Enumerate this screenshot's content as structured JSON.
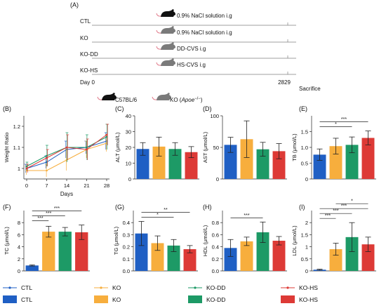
{
  "panel_labels": {
    "A": "(A)",
    "B": "(B)",
    "C": "(C)",
    "D": "(D)",
    "E": "(E)",
    "F": "(F)",
    "G": "(G)",
    "H": "(H)",
    "I": "(I)"
  },
  "timeline": {
    "groups": [
      {
        "label": "CTL",
        "treatment": "0.9% NaCl solution i.g",
        "mouse": "C57BL/6"
      },
      {
        "label": "KO",
        "treatment": "0.9% NaCl solution i.g",
        "mouse": "KO"
      },
      {
        "label": "KO-DD",
        "treatment": "DD-CVS i.g",
        "mouse": "KO"
      },
      {
        "label": "KO-HS",
        "treatment": "HS-CVS i.g",
        "mouse": "KO"
      }
    ],
    "day_label": "Day",
    "day_start": "0",
    "day_end_a": "28",
    "day_end_b": "29",
    "sacrifice": "Sacrifice",
    "key": [
      {
        "label": "C57BL/6"
      },
      {
        "label": "KO (",
        "italic": "Apoe",
        "sup": "−/−",
        "tail": ")"
      }
    ]
  },
  "colors": {
    "CTL": "#1f5fc4",
    "KO": "#f7ae3d",
    "KO-DD": "#1d9a66",
    "KO-HS": "#dd3a36",
    "timeline": "#7f7f7f",
    "mouse_dark": "#111111",
    "mouse_gray": "#7a7a7a",
    "tail": "#e07a8a"
  },
  "groups": [
    "CTL",
    "KO",
    "KO-DD",
    "KO-HS"
  ],
  "chart_data": [
    {
      "id": "B",
      "type": "line",
      "xlabel": "Days",
      "ylabel": "Weight Ratio",
      "x": [
        0,
        7,
        14,
        21,
        28
      ],
      "xticks": [
        "0",
        "7",
        "14",
        "21",
        "28"
      ],
      "ylim": [
        0.95,
        1.25
      ],
      "yticks": [
        {
          "v": 1.0,
          "t": "1"
        },
        {
          "v": 1.1,
          "t": "1.1"
        },
        {
          "v": 1.2,
          "t": "1.2"
        }
      ],
      "series": [
        {
          "name": "CTL",
          "values": [
            1.0,
            1.03,
            1.09,
            1.1,
            1.13
          ]
        },
        {
          "name": "KO",
          "values": [
            0.99,
            0.99,
            1.04,
            1.09,
            1.12
          ]
        },
        {
          "name": "KO-DD",
          "values": [
            1.01,
            1.06,
            1.1,
            1.1,
            1.15
          ]
        },
        {
          "name": "KO-HS",
          "values": [
            1.0,
            1.05,
            1.1,
            1.09,
            1.16
          ]
        }
      ],
      "err": [
        [
          0.02,
          0.03,
          0.04,
          0.03,
          0.04
        ],
        [
          0.02,
          0.03,
          0.05,
          0.04,
          0.04
        ],
        [
          0.02,
          0.05,
          0.07,
          0.06,
          0.06
        ],
        [
          0.02,
          0.04,
          0.06,
          0.05,
          0.05
        ]
      ]
    },
    {
      "id": "C",
      "type": "bar",
      "ylabel": "ALT (μmol/L)",
      "ylim": [
        0,
        40
      ],
      "yticks": [
        {
          "v": 0,
          "t": "0"
        },
        {
          "v": 10,
          "t": "10"
        },
        {
          "v": 20,
          "t": "20"
        },
        {
          "v": 30,
          "t": "30"
        },
        {
          "v": 40,
          "t": "40"
        }
      ],
      "values": [
        19,
        20.5,
        19,
        17
      ],
      "err": [
        4,
        6,
        4,
        3.5
      ],
      "sig": []
    },
    {
      "id": "D",
      "type": "bar",
      "ylabel": "AST (μmol/L)",
      "ylim": [
        0,
        100
      ],
      "yticks": [
        {
          "v": 0,
          "t": "0"
        },
        {
          "v": 50,
          "t": "50"
        },
        {
          "v": 100,
          "t": "100"
        }
      ],
      "values": [
        54,
        63,
        47,
        44
      ],
      "err": [
        12,
        29,
        11,
        12
      ],
      "sig": []
    },
    {
      "id": "E",
      "type": "bar",
      "ylabel": "TB (μmol/L)",
      "ylim": [
        0,
        2.0
      ],
      "yticks": [
        {
          "v": 0,
          "t": "0"
        },
        {
          "v": 0.5,
          "t": "0.5"
        },
        {
          "v": 1.0,
          "t": "1.0"
        },
        {
          "v": 1.5,
          "t": "1.5"
        }
      ],
      "values": [
        0.77,
        1.04,
        1.08,
        1.3
      ],
      "err": [
        0.18,
        0.25,
        0.25,
        0.22
      ],
      "sig": [
        {
          "from": 0,
          "to": 2,
          "label": "*"
        },
        {
          "from": 0,
          "to": 3,
          "label": "***"
        }
      ]
    },
    {
      "id": "F",
      "type": "bar",
      "ylabel": "TC (μmol/L)",
      "ylim": [
        0,
        10
      ],
      "yticks": [
        {
          "v": 0,
          "t": "0"
        },
        {
          "v": 2,
          "t": "2"
        },
        {
          "v": 4,
          "t": "4"
        },
        {
          "v": 6,
          "t": "6"
        },
        {
          "v": 8,
          "t": "8"
        }
      ],
      "values": [
        0.9,
        6.5,
        6.5,
        6.4
      ],
      "err": [
        0.1,
        0.9,
        0.7,
        1.2
      ],
      "sig": [
        {
          "from": 0,
          "to": 1,
          "label": "***"
        },
        {
          "from": 0,
          "to": 2,
          "label": "***"
        },
        {
          "from": 0,
          "to": 3,
          "label": "***"
        }
      ]
    },
    {
      "id": "G",
      "type": "bar",
      "ylabel": "TG (μmol/L)",
      "ylim": [
        0,
        0.5
      ],
      "yticks": [
        {
          "v": 0,
          "t": "0.0"
        },
        {
          "v": 0.1,
          "t": "0.1"
        },
        {
          "v": 0.2,
          "t": "0.2"
        },
        {
          "v": 0.3,
          "t": "0.3"
        },
        {
          "v": 0.4,
          "t": "0.4"
        }
      ],
      "values": [
        0.31,
        0.23,
        0.21,
        0.18
      ],
      "err": [
        0.1,
        0.06,
        0.05,
        0.03
      ],
      "sig": [
        {
          "from": 0,
          "to": 2,
          "label": "*"
        },
        {
          "from": 0,
          "to": 3,
          "label": "**"
        }
      ]
    },
    {
      "id": "H",
      "type": "bar",
      "ylabel": "HDL (μmol/L)",
      "ylim": [
        0,
        1.0
      ],
      "yticks": [
        {
          "v": 0,
          "t": "0.0"
        },
        {
          "v": 0.2,
          "t": "0.2"
        },
        {
          "v": 0.4,
          "t": "0.4"
        },
        {
          "v": 0.6,
          "t": "0.6"
        },
        {
          "v": 0.8,
          "t": "0.8"
        }
      ],
      "values": [
        0.38,
        0.49,
        0.64,
        0.5
      ],
      "err": [
        0.14,
        0.07,
        0.17,
        0.07
      ],
      "sig": [
        {
          "from": 0,
          "to": 2,
          "label": "***"
        }
      ]
    },
    {
      "id": "I",
      "type": "bar",
      "ylabel": "LDL (μmol/L)",
      "ylim": [
        0,
        2.5
      ],
      "yticks": [
        {
          "v": 0,
          "t": "0"
        },
        {
          "v": 0.5,
          "t": "0.5"
        },
        {
          "v": 1.0,
          "t": "1"
        },
        {
          "v": 1.5,
          "t": "1.5"
        },
        {
          "v": 2.0,
          "t": "2"
        }
      ],
      "values": [
        0.05,
        0.9,
        1.4,
        1.1
      ],
      "err": [
        0.02,
        0.25,
        0.6,
        0.3
      ],
      "sig": [
        {
          "from": 0,
          "to": 1,
          "label": "***"
        },
        {
          "from": 0,
          "to": 2,
          "label": "***"
        },
        {
          "from": 0,
          "to": 3,
          "label": "***"
        },
        {
          "from": 1,
          "to": 3,
          "label": "*"
        }
      ]
    }
  ]
}
